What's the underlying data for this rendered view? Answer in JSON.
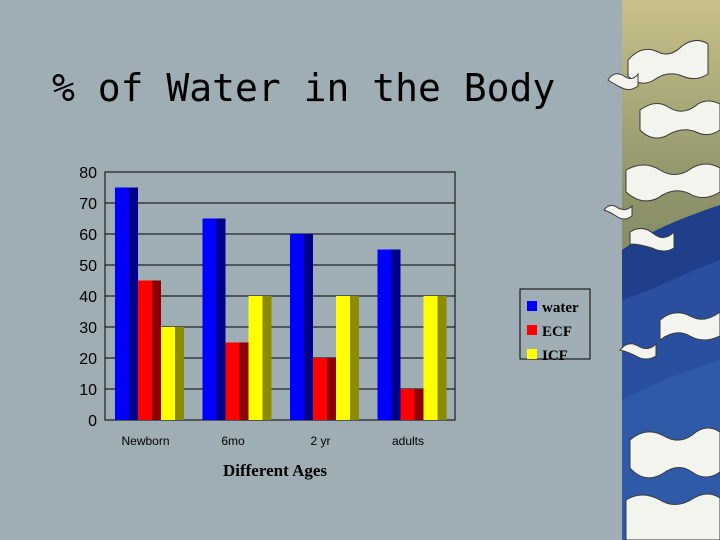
{
  "slide": {
    "title": "% of Water in the Body"
  },
  "colors": {
    "background": "#9fadb4",
    "water": "#0000ff",
    "ecf": "#ff0000",
    "icf": "#ffff00"
  },
  "chart_data": {
    "type": "bar",
    "title": "",
    "xlabel": "Different Ages",
    "ylabel": "",
    "categories": [
      "Newborn",
      "6mo",
      "2 yr",
      "adults"
    ],
    "ylim": [
      0,
      80
    ],
    "yticks": [
      "0",
      "10",
      "20",
      "30",
      "40",
      "50",
      "60",
      "70",
      "80"
    ],
    "grid": true,
    "bar_style": "3d",
    "legend_position": "right",
    "series": [
      {
        "name": "water",
        "values": [
          75,
          65,
          60,
          55
        ],
        "color": "#0000ff"
      },
      {
        "name": "ECF",
        "values": [
          45,
          25,
          20,
          10
        ],
        "color": "#ff0000"
      },
      {
        "name": "ICF",
        "values": [
          30,
          40,
          40,
          40
        ],
        "color": "#ffff00"
      }
    ]
  }
}
